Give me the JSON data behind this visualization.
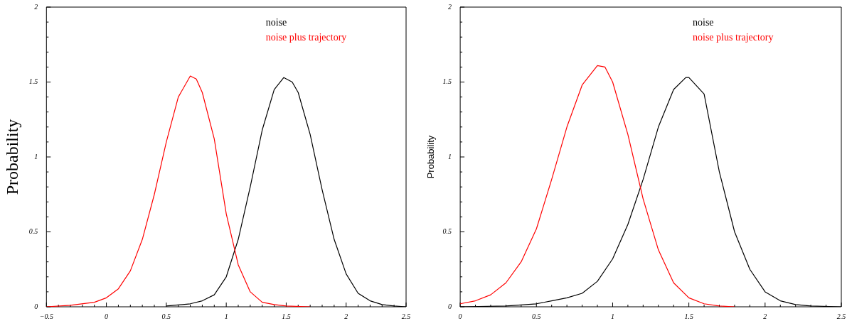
{
  "chart_data": [
    {
      "type": "line",
      "ylabel": "Probability",
      "legend": "top right",
      "marker": "none",
      "line_style": "solid",
      "grid": false,
      "xlim": [
        -0.5,
        2.5
      ],
      "xticks": [
        {
          "value": -0.5,
          "label": "−0.5"
        },
        0,
        0.5,
        1,
        1.5,
        2,
        2.5
      ],
      "ylim": [
        0,
        2
      ],
      "yticks": [
        0,
        0.5,
        1,
        1.5,
        2
      ],
      "series": [
        {
          "name": "noise",
          "color": "#000000",
          "x": [
            0.5,
            0.7,
            0.8,
            0.9,
            1.0,
            1.1,
            1.2,
            1.3,
            1.4,
            1.48,
            1.55,
            1.6,
            1.7,
            1.8,
            1.9,
            2.0,
            2.1,
            2.2,
            2.3,
            2.4,
            2.5
          ],
          "values": [
            0.005,
            0.02,
            0.04,
            0.08,
            0.2,
            0.45,
            0.8,
            1.18,
            1.45,
            1.53,
            1.5,
            1.43,
            1.15,
            0.78,
            0.45,
            0.22,
            0.09,
            0.04,
            0.015,
            0.005,
            0
          ]
        },
        {
          "name": "noise plus trajectory",
          "color": "#ff0000",
          "x": [
            -0.5,
            -0.3,
            -0.1,
            0,
            0.1,
            0.2,
            0.3,
            0.4,
            0.5,
            0.6,
            0.7,
            0.75,
            0.8,
            0.9,
            1.0,
            1.1,
            1.2,
            1.3,
            1.4,
            1.5,
            1.7
          ],
          "values": [
            0,
            0.01,
            0.03,
            0.06,
            0.12,
            0.24,
            0.45,
            0.75,
            1.1,
            1.4,
            1.54,
            1.52,
            1.43,
            1.12,
            0.62,
            0.28,
            0.1,
            0.03,
            0.015,
            0.005,
            0
          ]
        }
      ]
    },
    {
      "type": "line",
      "ylabel": "Probability",
      "legend": "top right",
      "marker": "none",
      "line_style": "solid",
      "grid": false,
      "xlim": [
        0,
        2.5
      ],
      "xticks": [
        0,
        0.5,
        1,
        1.5,
        2,
        2.5
      ],
      "ylim": [
        0,
        2
      ],
      "yticks": [
        0,
        0.5,
        1,
        1.5,
        2
      ],
      "series": [
        {
          "name": "noise",
          "color": "#000000",
          "x": [
            0,
            0.3,
            0.5,
            0.6,
            0.7,
            0.8,
            0.9,
            1.0,
            1.1,
            1.2,
            1.3,
            1.4,
            1.48,
            1.5,
            1.6,
            1.7,
            1.8,
            1.9,
            2.0,
            2.1,
            2.2,
            2.3,
            2.5
          ],
          "values": [
            0,
            0.005,
            0.02,
            0.04,
            0.06,
            0.09,
            0.17,
            0.32,
            0.55,
            0.85,
            1.2,
            1.45,
            1.53,
            1.53,
            1.42,
            0.9,
            0.5,
            0.25,
            0.1,
            0.04,
            0.015,
            0.005,
            0
          ]
        },
        {
          "name": "noise plus trajectory",
          "color": "#ff0000",
          "x": [
            0,
            0.1,
            0.2,
            0.3,
            0.4,
            0.5,
            0.6,
            0.7,
            0.8,
            0.9,
            0.95,
            1.0,
            1.1,
            1.2,
            1.3,
            1.4,
            1.5,
            1.6,
            1.7,
            1.8
          ],
          "values": [
            0.02,
            0.04,
            0.08,
            0.16,
            0.3,
            0.52,
            0.85,
            1.2,
            1.48,
            1.61,
            1.6,
            1.5,
            1.15,
            0.72,
            0.38,
            0.16,
            0.06,
            0.02,
            0.005,
            0
          ]
        }
      ]
    }
  ]
}
